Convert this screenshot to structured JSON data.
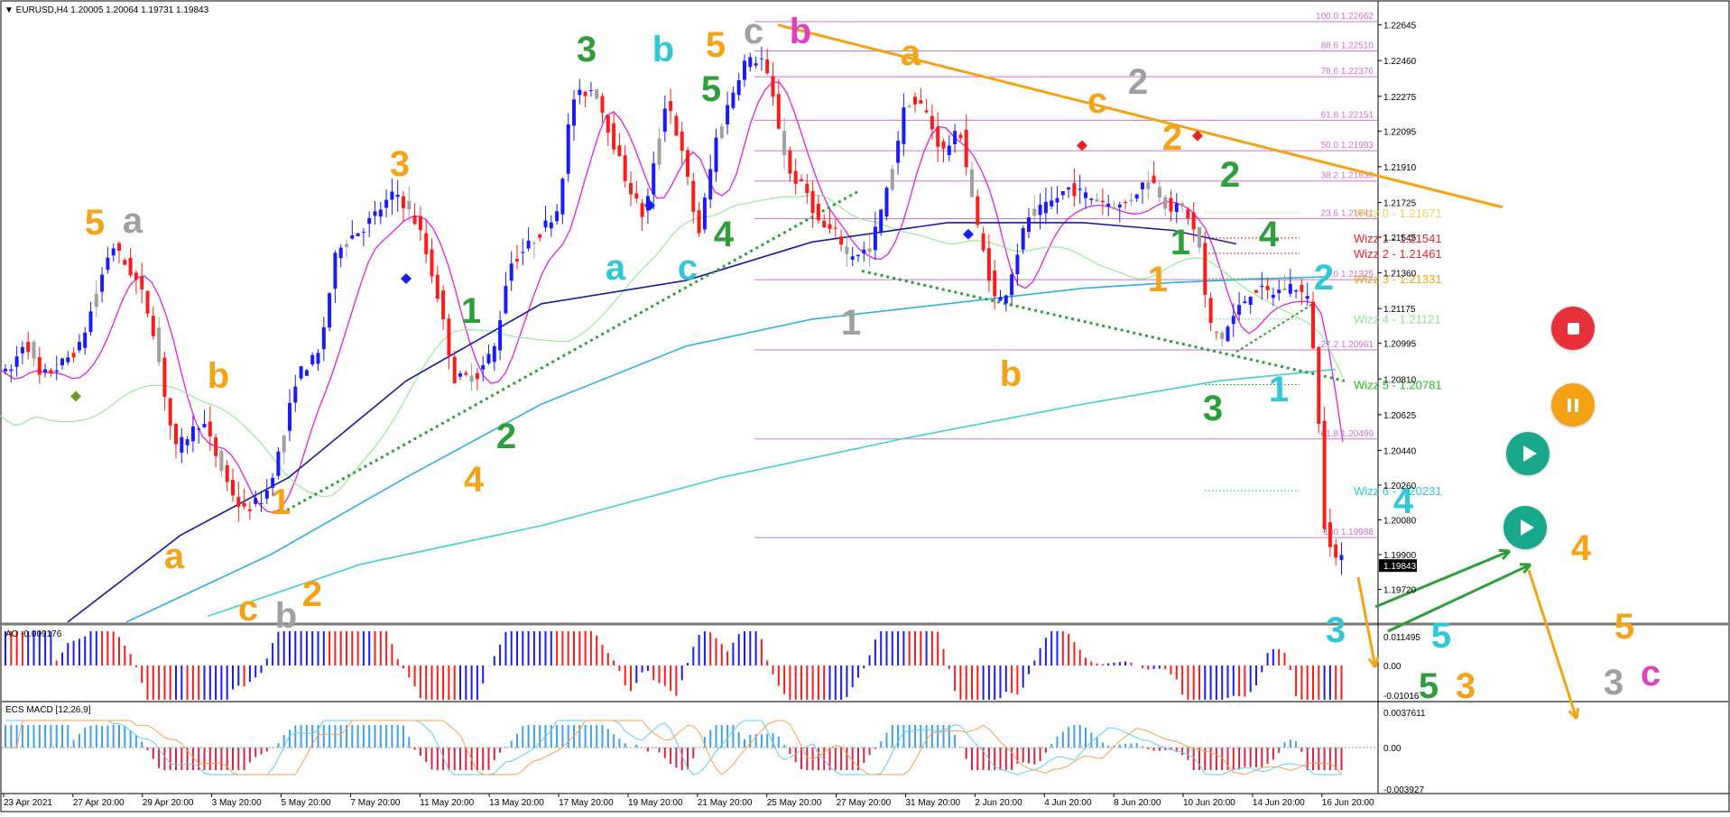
{
  "chart_data": {
    "type": "candlestick",
    "symbol_header": "EURUSD,H4",
    "ohlc_header": "1.20005 1.20064 1.19731 1.19843",
    "last_price": "1.19843",
    "price_axis_labels": [
      "1.22645",
      "1.22460",
      "1.22275",
      "1.22095",
      "1.21910",
      "1.21725",
      "1.21545",
      "1.21360",
      "1.21175",
      "1.20995",
      "1.20810",
      "1.20625",
      "1.20440",
      "1.20260",
      "1.20080",
      "1.19900",
      "1.19720"
    ],
    "time_axis_labels": [
      "23 Apr 2021",
      "27 Apr 20:00",
      "29 Apr 20:00",
      "3 May 20:00",
      "5 May 20:00",
      "7 May 20:00",
      "11 May 20:00",
      "13 May 20:00",
      "17 May 20:00",
      "19 May 20:00",
      "21 May 20:00",
      "25 May 20:00",
      "27 May 20:00",
      "31 May 20:00",
      "2 Jun 20:00",
      "4 Jun 20:00",
      "8 Jun 20:00",
      "10 Jun 20:00",
      "14 Jun 20:00",
      "16 Jun 20:00"
    ],
    "fibonacci_levels": [
      {
        "label": "100.0 1.22662",
        "price": 1.22662
      },
      {
        "label": "88.6 1.22510",
        "price": 1.2251
      },
      {
        "label": "78.6 1.22376",
        "price": 1.22376
      },
      {
        "label": "61.8 1.22151",
        "price": 1.22151
      },
      {
        "label": "50.0 1.21993",
        "price": 1.21993
      },
      {
        "label": "38.2 1.21836",
        "price": 1.21836
      },
      {
        "label": "23.6 1.21641",
        "price": 1.21641
      },
      {
        "label": "0.0 1.21325",
        "price": 1.21325
      },
      {
        "label": "-27.2 1.20961",
        "price": 1.20961
      },
      {
        "label": "-61.8 1.20499",
        "price": 1.20499
      },
      {
        "label": "-100 1.19988",
        "price": 1.19988
      }
    ],
    "wizz_levels": [
      {
        "label": "Wizz 0 - 1.21671",
        "price": 1.21671,
        "color": "#f2d44a"
      },
      {
        "label": "Wizz 1 - 1.21541",
        "price": 1.21541,
        "color": "#e8242b"
      },
      {
        "label": "Wizz 2 - 1.21461",
        "price": 1.21461,
        "color": "#e8242b"
      },
      {
        "label": "Wizz 3 - 1.21331",
        "price": 1.21331,
        "color": "#f5a314"
      },
      {
        "label": "Wizz 4 - 1.21121",
        "price": 1.21121,
        "color": "#8ee08e"
      },
      {
        "label": "Wizz 5 - 1.20781",
        "price": 1.20781,
        "color": "#22c022"
      },
      {
        "label": "Wizz 6 - 1.20231",
        "price": 1.20231,
        "color": "#30c8d8"
      }
    ],
    "wave_labels": [
      {
        "text": "5",
        "color": "#f5a314"
      },
      {
        "text": "a",
        "color": "#a0a0a0"
      },
      {
        "text": "a",
        "color": "#f5a314"
      },
      {
        "text": "b",
        "color": "#f5a314"
      },
      {
        "text": "1",
        "color": "#f5a314"
      },
      {
        "text": "c",
        "color": "#f5a314"
      },
      {
        "text": "b",
        "color": "#a0a0a0"
      },
      {
        "text": "2",
        "color": "#f5a314"
      },
      {
        "text": "3",
        "color": "#f5a314"
      },
      {
        "text": "1",
        "color": "#2e9e3a"
      },
      {
        "text": "2",
        "color": "#2e9e3a"
      },
      {
        "text": "4",
        "color": "#f5a314"
      },
      {
        "text": "3",
        "color": "#2e9e3a"
      },
      {
        "text": "b",
        "color": "#30c8d8"
      },
      {
        "text": "5",
        "color": "#f5a314"
      },
      {
        "text": "5",
        "color": "#2e9e3a"
      },
      {
        "text": "a",
        "color": "#30c8d8"
      },
      {
        "text": "c",
        "color": "#30c8d8"
      },
      {
        "text": "4",
        "color": "#2e9e3a"
      },
      {
        "text": "c",
        "color": "#a0a0a0"
      },
      {
        "text": "b",
        "color": "#e040c0"
      },
      {
        "text": "1",
        "color": "#a0a0a0"
      },
      {
        "text": "a",
        "color": "#f5a314"
      },
      {
        "text": "c",
        "color": "#f5a314"
      },
      {
        "text": "2",
        "color": "#a0a0a0"
      },
      {
        "text": "b",
        "color": "#f5a314"
      },
      {
        "text": "2",
        "color": "#f5a314"
      },
      {
        "text": "2",
        "color": "#2e9e3a"
      },
      {
        "text": "4",
        "color": "#2e9e3a"
      },
      {
        "text": "1",
        "color": "#f5a314"
      },
      {
        "text": "1",
        "color": "#2e9e3a"
      },
      {
        "text": "2",
        "color": "#30c8d8"
      },
      {
        "text": "3",
        "color": "#2e9e3a"
      },
      {
        "text": "1",
        "color": "#30c8d8"
      },
      {
        "text": "4",
        "color": "#30c8d8"
      },
      {
        "text": "4",
        "color": "#f5a314"
      },
      {
        "text": "3",
        "color": "#30c8d8"
      },
      {
        "text": "5",
        "color": "#30c8d8"
      },
      {
        "text": "5",
        "color": "#2e9e3a"
      },
      {
        "text": "3",
        "color": "#f5a314"
      },
      {
        "text": "5",
        "color": "#f5a314"
      },
      {
        "text": "3",
        "color": "#a0a0a0"
      },
      {
        "text": "c",
        "color": "#e040c0"
      }
    ],
    "ao_panel": {
      "label": "AO -0.009176",
      "axis_labels": [
        "0.011495",
        "0.00",
        "-0.01016"
      ]
    },
    "macd_panel": {
      "label": "ECS MACD [12,26,9]",
      "axis_labels": [
        "0.0037611",
        "0.00",
        "-0.003927"
      ]
    },
    "colors": {
      "bull": "#1a1aff",
      "bear": "#ff1a1a",
      "neutral": "#a0a0a0",
      "fib": "#d070d0",
      "trendline": "#f5a314",
      "dotted_trend": "#2e9e3a",
      "ema_slow": "#1a1aa0",
      "ema_mid": "#30b0e0",
      "ema_long": "#40d0d0",
      "ema_green": "#22cc22",
      "ema_magenta": "#e020e0",
      "ema_orange": "#f5a314"
    }
  },
  "controls": {
    "stop_label": "stop-button",
    "pause_label": "pause-button",
    "play_label": "play-button"
  }
}
